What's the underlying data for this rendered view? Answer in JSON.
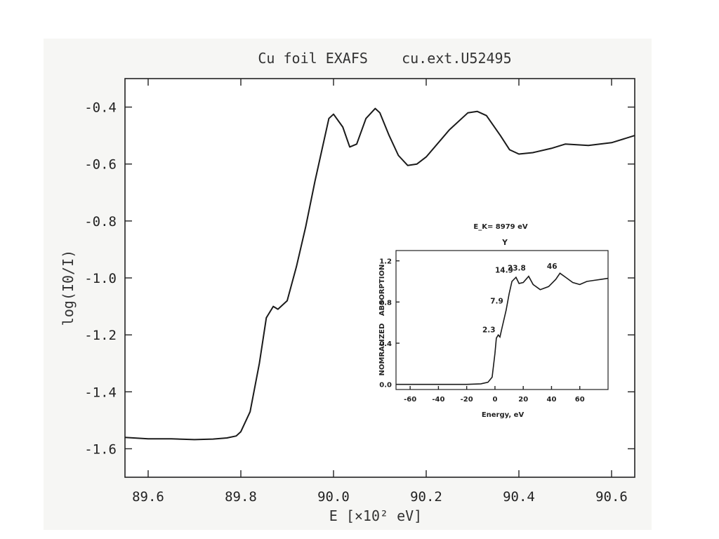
{
  "chart_data": [
    {
      "type": "line",
      "title": "Cu foil EXAFS    cu.ext.U52495",
      "xlabel": "E [×10² eV]",
      "ylabel": "log(I0/I)",
      "xlim": [
        89.55,
        90.65
      ],
      "ylim": [
        -1.7,
        -0.3
      ],
      "xticks": [
        "89.6",
        "89.8",
        "90.0",
        "90.2",
        "90.4",
        "90.6"
      ],
      "xtick_values": [
        89.6,
        89.8,
        90.0,
        90.2,
        90.4,
        90.6
      ],
      "yticks": [
        "-0.4",
        "-0.6",
        "-0.8",
        "-1.0",
        "-1.2",
        "-1.4",
        "-1.6"
      ],
      "ytick_values": [
        -0.4,
        -0.6,
        -0.8,
        -1.0,
        -1.2,
        -1.4,
        -1.6
      ],
      "grid": false,
      "series": [
        {
          "x": [
            89.55,
            89.6,
            89.65,
            89.7,
            89.74,
            89.77,
            89.79,
            89.8,
            89.82,
            89.84,
            89.855,
            89.87,
            89.88,
            89.9,
            89.92,
            89.94,
            89.96,
            89.975,
            89.99,
            90.0,
            90.02,
            90.035,
            90.05,
            90.07,
            90.09,
            90.1,
            90.12,
            90.14,
            90.16,
            90.18,
            90.2,
            90.25,
            90.29,
            90.31,
            90.33,
            90.36,
            90.38,
            90.4,
            90.43,
            90.47,
            90.5,
            90.55,
            90.6,
            90.65
          ],
          "y": [
            -1.56,
            -1.565,
            -1.565,
            -1.568,
            -1.566,
            -1.562,
            -1.555,
            -1.54,
            -1.47,
            -1.3,
            -1.14,
            -1.1,
            -1.11,
            -1.08,
            -0.96,
            -0.82,
            -0.66,
            -0.55,
            -0.44,
            -0.425,
            -0.47,
            -0.54,
            -0.53,
            -0.44,
            -0.405,
            -0.42,
            -0.5,
            -0.57,
            -0.605,
            -0.6,
            -0.575,
            -0.48,
            -0.42,
            -0.415,
            -0.43,
            -0.5,
            -0.55,
            -0.565,
            -0.56,
            -0.545,
            -0.53,
            -0.535,
            -0.525,
            -0.5
          ]
        }
      ]
    },
    {
      "type": "line",
      "title": "",
      "above_label": "E_K= 8979 eV",
      "marker": "Y",
      "xlabel": "Energy, eV",
      "ylabel": "NOMRALIZED   ABSORPTION",
      "xlim": [
        -70,
        80
      ],
      "ylim": [
        -0.05,
        1.3
      ],
      "xticks": [
        "-60",
        "-40",
        "-20",
        "0",
        "20",
        "40",
        "60"
      ],
      "xtick_values": [
        -60,
        -40,
        -20,
        0,
        20,
        40,
        60
      ],
      "yticks": [
        "0.0",
        "0.4",
        "0.8",
        "1.2"
      ],
      "ytick_values": [
        0.0,
        0.4,
        0.8,
        1.2
      ],
      "annotations": [
        {
          "text": "2.3",
          "x": 2.3,
          "y": 0.47
        },
        {
          "text": "7.9",
          "x": 7.9,
          "y": 0.75
        },
        {
          "text": "14.9",
          "x": 14.9,
          "y": 1.05
        },
        {
          "text": "23.8",
          "x": 23.8,
          "y": 1.07
        },
        {
          "text": "46",
          "x": 46,
          "y": 1.09
        }
      ],
      "series": [
        {
          "x": [
            -70,
            -40,
            -20,
            -10,
            -5,
            -2,
            0,
            1,
            2.3,
            3.5,
            5,
            7.9,
            10,
            12,
            14.9,
            17,
            20,
            23.8,
            27,
            32,
            38,
            43,
            46,
            50,
            55,
            60,
            65,
            70,
            75,
            80
          ],
          "y": [
            0.0,
            0.0,
            0.0,
            0.005,
            0.02,
            0.07,
            0.3,
            0.45,
            0.48,
            0.46,
            0.55,
            0.72,
            0.88,
            1.0,
            1.04,
            0.98,
            0.99,
            1.05,
            0.97,
            0.92,
            0.95,
            1.02,
            1.08,
            1.04,
            0.99,
            0.97,
            1.0,
            1.01,
            1.02,
            1.03
          ]
        }
      ]
    }
  ]
}
